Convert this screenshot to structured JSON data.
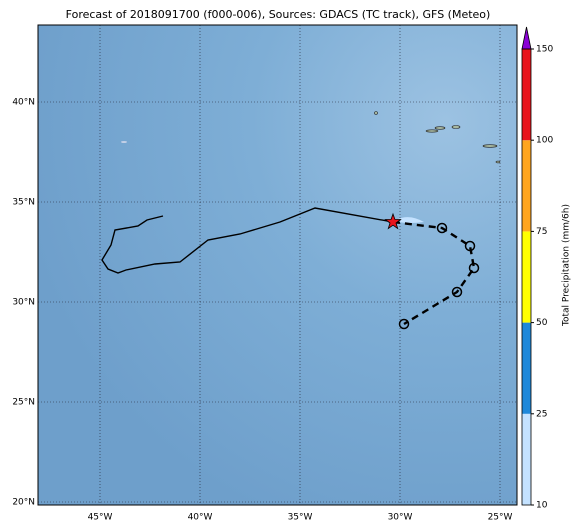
{
  "chart_data": {
    "type": "map",
    "title": "Forecast of 2018091700 (f000-006), Sources: GDACS (TC track), GFS (Meteo)",
    "xlim": [
      -48.1,
      -24.15
    ],
    "ylim": [
      19.85,
      43.85
    ],
    "xticks": [
      {
        "value": -45,
        "label": "45°W"
      },
      {
        "value": -40,
        "label": "40°W"
      },
      {
        "value": -35,
        "label": "35°W"
      },
      {
        "value": -30,
        "label": "30°W"
      },
      {
        "value": -25,
        "label": "25°W"
      }
    ],
    "yticks": [
      {
        "value": 20,
        "label": "20°N"
      },
      {
        "value": 25,
        "label": "25°N"
      },
      {
        "value": 30,
        "label": "30°N"
      },
      {
        "value": 35,
        "label": "35°N"
      },
      {
        "value": 40,
        "label": "40°N"
      }
    ],
    "grid": true,
    "past_track": {
      "color": "#000000",
      "lon": [
        -41.85,
        -42.65,
        -43.1,
        -44.25,
        -44.45,
        -44.9,
        -44.6,
        -44.1,
        -43.7,
        -42.25,
        -41.0,
        -39.6,
        -38.0,
        -36.0,
        -34.25,
        -30.35
      ],
      "lat": [
        34.3,
        34.1,
        33.8,
        33.6,
        32.85,
        32.1,
        31.65,
        31.45,
        31.6,
        31.9,
        32.0,
        33.1,
        33.4,
        34.0,
        34.7,
        34.0
      ]
    },
    "forecast_track": {
      "color": "#000000",
      "lon": [
        -30.35,
        -27.9,
        -26.5,
        -26.3,
        -27.15,
        -29.8
      ],
      "lat": [
        34.0,
        33.7,
        32.8,
        31.7,
        30.5,
        28.9
      ]
    },
    "current_position": {
      "lon": -30.35,
      "lat": 34.0,
      "color": "#e8141c"
    },
    "colorbar": {
      "label": "Total Precipitation (mm/6h)",
      "ticks": [
        10,
        25,
        50,
        75,
        100,
        150
      ],
      "colors": [
        "#c4e2ff",
        "#1e88da",
        "#ffff00",
        "#ffa51e",
        "#e8141c"
      ],
      "extend_color": "#8a00d4"
    }
  }
}
